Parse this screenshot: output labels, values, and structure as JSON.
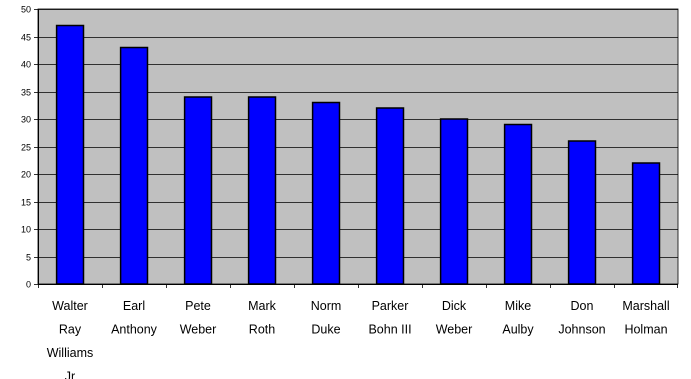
{
  "chart_data": {
    "type": "bar",
    "title": "",
    "xlabel": "",
    "ylabel": "",
    "ylim": [
      0,
      50
    ],
    "y_ticks": [
      0,
      5,
      10,
      15,
      20,
      25,
      30,
      35,
      40,
      45,
      50
    ],
    "grid": true,
    "legend": "none",
    "categories": [
      [
        "Walter",
        "Ray",
        "Williams",
        "Jr"
      ],
      [
        "Earl",
        "Anthony"
      ],
      [
        "Pete",
        "Weber"
      ],
      [
        "Mark",
        "Roth"
      ],
      [
        "Norm",
        "Duke"
      ],
      [
        "Parker",
        "Bohn III"
      ],
      [
        "Dick",
        "Weber"
      ],
      [
        "Mike",
        "Aulby"
      ],
      [
        "Don",
        "Johnson"
      ],
      [
        "Marshall",
        "Holman"
      ]
    ],
    "values": [
      47,
      43,
      34,
      34,
      33,
      32,
      30,
      29,
      26,
      22
    ],
    "colors": {
      "bar_fill": "#0000ff",
      "bar_stroke": "#000000",
      "plot_background": "#c0c0c0",
      "gridline": "#000000",
      "axis": "#000000"
    }
  }
}
